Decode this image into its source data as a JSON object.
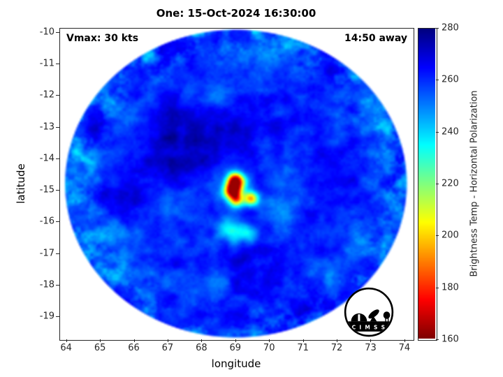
{
  "chart_data": {
    "type": "heatmap",
    "title": "One: 15-Oct-2024 16:30:00",
    "xlabel": "longitude",
    "ylabel": "latitude",
    "xlim": [
      63.8,
      74.25
    ],
    "ylim": [
      -19.73,
      -9.87
    ],
    "xticks": [
      64,
      65,
      66,
      67,
      68,
      69,
      70,
      71,
      72,
      73,
      74
    ],
    "yticks": [
      -10,
      -11,
      -12,
      -13,
      -14,
      -15,
      -16,
      -17,
      -18,
      -19
    ],
    "grid": false,
    "annotations": {
      "vmax_label": "Vmax: 30 kts",
      "time_away_label": "14:50 away"
    },
    "colorbar": {
      "label": "Brightness Temp - Horizontal Polarization",
      "min": 160,
      "max": 280,
      "ticks": [
        160,
        180,
        200,
        220,
        240,
        260,
        280
      ],
      "colormap": "jet-reversed",
      "position": "right"
    },
    "swath": {
      "shape": "disk",
      "center_lon": 69.02,
      "center_lat": -14.8,
      "radius_lon": 5.11,
      "radius_lat": 4.93,
      "background_temp_k": 262,
      "noise_amp_large": 13,
      "noise_amp_small": 6
    },
    "features": [
      {
        "name": "eyewall-core-north",
        "lon": 69.0,
        "lat": -14.72,
        "temp_drop": 95,
        "sigma": 0.17
      },
      {
        "name": "eyewall-core-south",
        "lon": 68.93,
        "lat": -15.03,
        "temp_drop": 88,
        "sigma": 0.17
      },
      {
        "name": "core-south-extension",
        "lon": 69.03,
        "lat": -15.32,
        "temp_drop": 55,
        "sigma": 0.15
      },
      {
        "name": "convective-cell-east",
        "lon": 69.47,
        "lat": -15.28,
        "temp_drop": 62,
        "sigma": 0.15
      },
      {
        "name": "core-halo",
        "lon": 69.08,
        "lat": -15.02,
        "temp_drop": 18,
        "sigma": 0.45
      },
      {
        "name": "rainband-cell-southwest",
        "lon": 68.85,
        "lat": -16.28,
        "temp_drop": 30,
        "sigma": 0.27
      },
      {
        "name": "rainband-cell-southeast",
        "lon": 69.42,
        "lat": -16.42,
        "temp_drop": 24,
        "sigma": 0.24
      },
      {
        "name": "band-east",
        "lon": 70.3,
        "lat": -15.55,
        "temp_drop": 14,
        "sigma": 0.4
      },
      {
        "name": "cloud-free-moat-northwest",
        "lon": 67.9,
        "lat": -13.4,
        "temp_drop": -9,
        "sigma": 0.9
      }
    ]
  },
  "logo": {
    "text": "C I M S S"
  }
}
